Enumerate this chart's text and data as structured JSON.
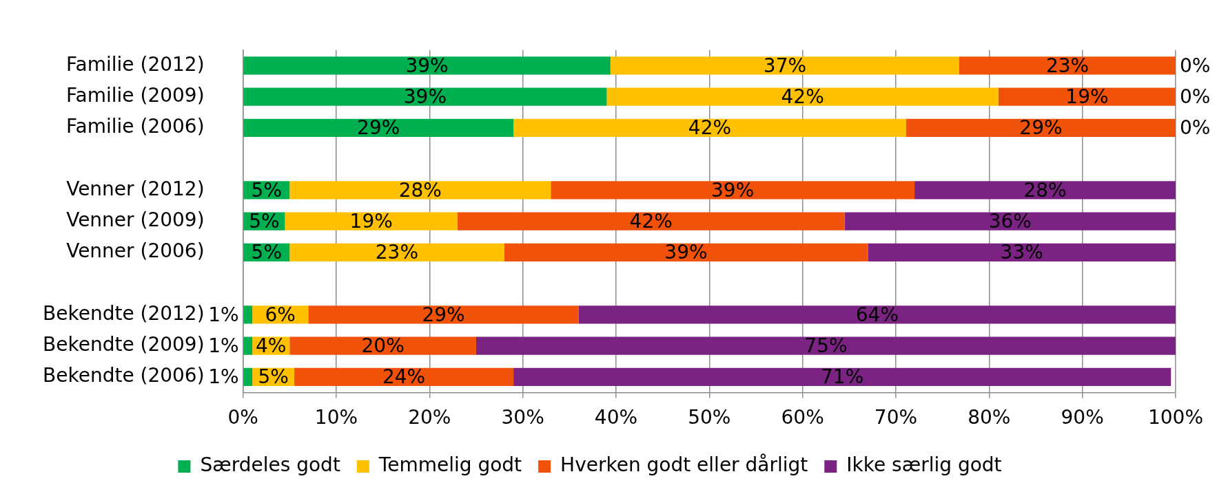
{
  "chart_data": {
    "type": "bar",
    "orientation": "horizontal",
    "stacked": true,
    "categories": [
      "Familie (2012)",
      "Familie (2009)",
      "Familie (2006)",
      null,
      "Venner (2012)",
      "Venner (2009)",
      "Venner (2006)",
      null,
      "Bekendte (2012)",
      "Bekendte (2009)",
      "Bekendte (2006)"
    ],
    "series": [
      {
        "name": "Særdeles godt",
        "color": "#00b050",
        "values": [
          39.4,
          39.0,
          29.0,
          null,
          5.0,
          4.5,
          5.0,
          null,
          1.0,
          1.0,
          1.0
        ],
        "value_labels": [
          "39%",
          "39%",
          "29%",
          null,
          "5%",
          "5%",
          "5%",
          null,
          "1%",
          "1%",
          "1%"
        ]
      },
      {
        "name": "Temmelig godt",
        "color": "#ffc000",
        "values": [
          37.4,
          42.0,
          42.1,
          null,
          28.0,
          18.5,
          23.0,
          null,
          6.0,
          4.0,
          4.5
        ],
        "value_labels": [
          "37%",
          "42%",
          "42%",
          null,
          "28%",
          "19%",
          "23%",
          null,
          "6%",
          "4%",
          "5%"
        ]
      },
      {
        "name": "Hverken godt eller dårligt",
        "color": "#f0520a",
        "values": [
          23.2,
          19.0,
          28.9,
          null,
          39.0,
          41.5,
          39.0,
          null,
          29.0,
          20.0,
          23.5
        ],
        "value_labels": [
          "23%",
          "19%",
          "29%",
          null,
          "39%",
          "42%",
          "39%",
          null,
          "29%",
          "20%",
          "24%"
        ]
      },
      {
        "name": "Ikke særlig godt",
        "color": "#7b2382",
        "values": [
          0,
          0,
          0,
          null,
          28.0,
          35.5,
          33.0,
          null,
          64.0,
          75.0,
          70.5
        ],
        "value_labels": [
          "0%",
          "0%",
          "0%",
          null,
          "28%",
          "36%",
          "33%",
          null,
          "64%",
          "75%",
          "71%"
        ]
      }
    ],
    "xlim": [
      0,
      100
    ],
    "xticks": [
      {
        "value": 0,
        "label": "0%"
      },
      {
        "value": 10,
        "label": "10%"
      },
      {
        "value": 20,
        "label": "20%"
      },
      {
        "value": 30,
        "label": "30%"
      },
      {
        "value": 40,
        "label": "40%"
      },
      {
        "value": 50,
        "label": "50%"
      },
      {
        "value": 60,
        "label": "60%"
      },
      {
        "value": 70,
        "label": "70%"
      },
      {
        "value": 80,
        "label": "80%"
      },
      {
        "value": 90,
        "label": "90%"
      },
      {
        "value": 100,
        "label": "100%"
      }
    ],
    "grid": "x",
    "legend": "bottom"
  }
}
